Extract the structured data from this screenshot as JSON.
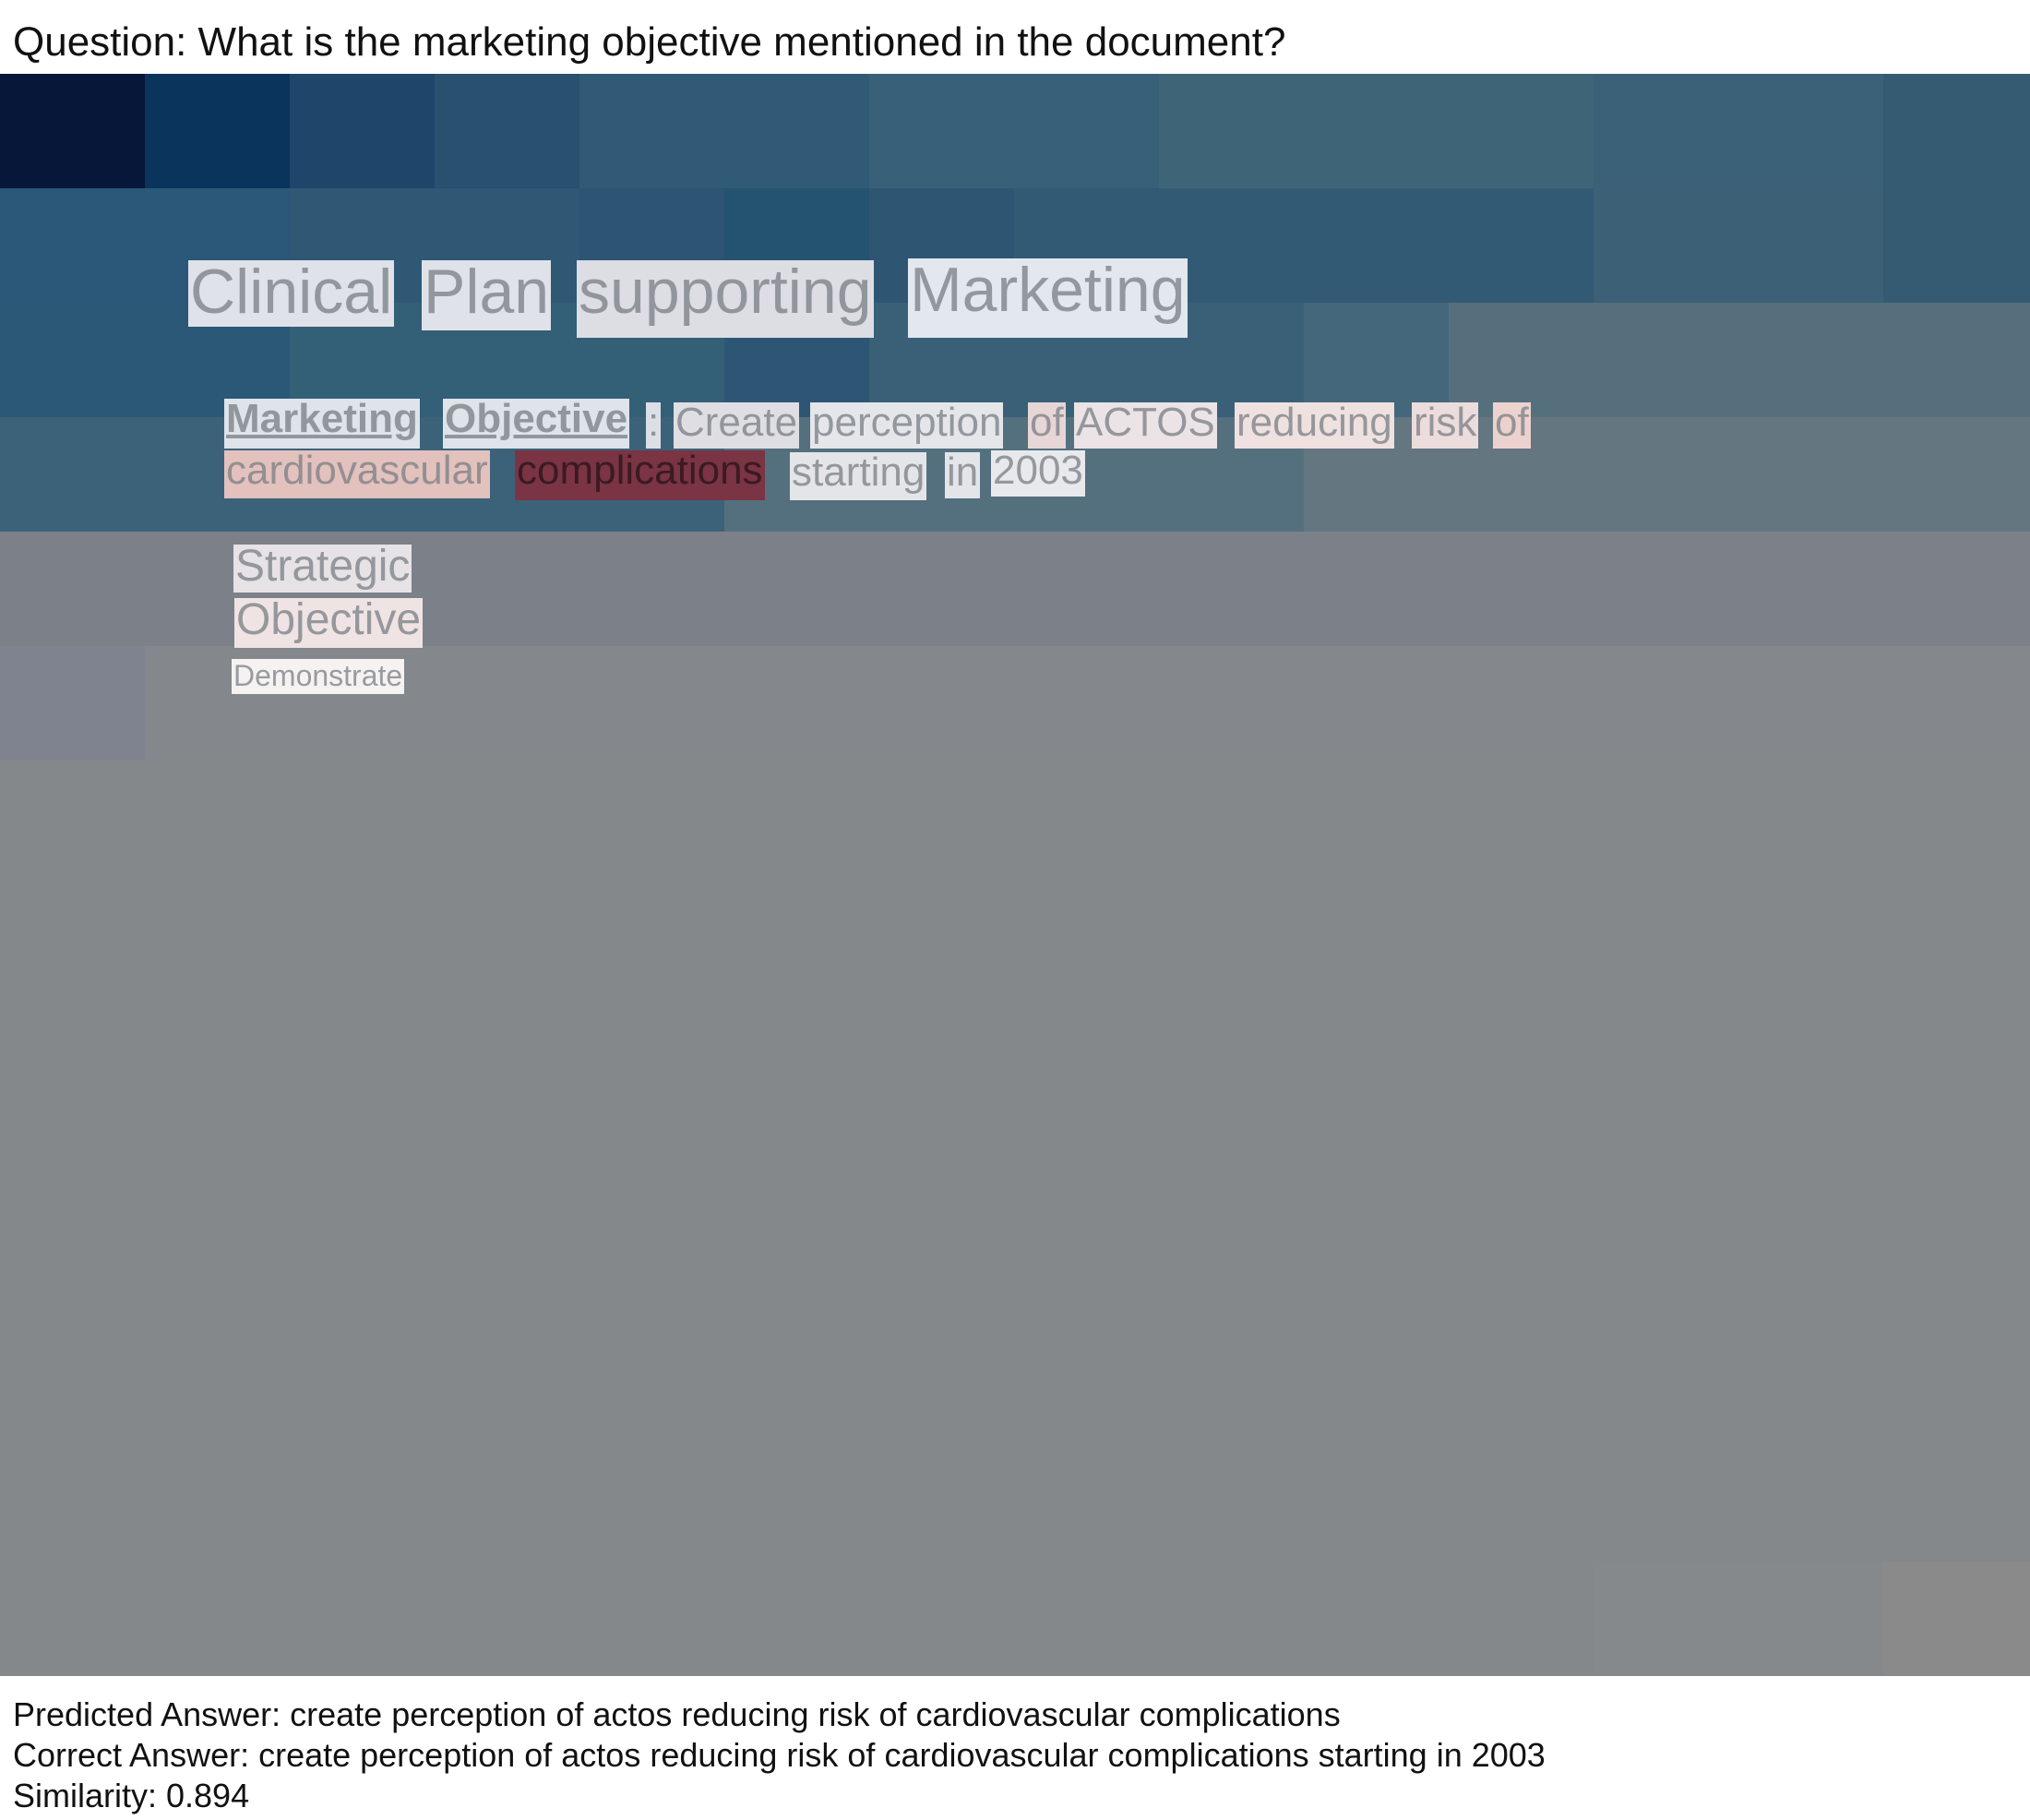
{
  "question": {
    "label": "Question: What is the marketing objective mentioned in the document?"
  },
  "document": {
    "title_words": [
      "Clinical",
      "Plan",
      "supporting",
      "Marketing"
    ],
    "objective_line1": [
      "Marketing",
      "Objective",
      ":",
      "Create",
      "perception",
      "of",
      "ACTOS",
      "reducing",
      "risk",
      "of"
    ],
    "objective_line2": [
      "cardiovascular",
      "complications",
      "starting",
      "in",
      "2003"
    ],
    "strategic": [
      "Strategic",
      "Objective"
    ],
    "demonstrate": "Demonstrate"
  },
  "answers": {
    "predicted": "Predicted Answer: create perception of actos reducing risk of cardiovascular complications",
    "correct": "Correct Answer: create perception of actos reducing risk of cardiovascular complications starting in 2003",
    "similarity": "Similarity: 0.894"
  },
  "colors": {
    "heat_high": "#7a3444",
    "heat_mid": "#e3c1bd",
    "heat_low": "#dfe2e8",
    "bg_blue_dark": "#06173a",
    "bg_gray": "#84888b"
  }
}
